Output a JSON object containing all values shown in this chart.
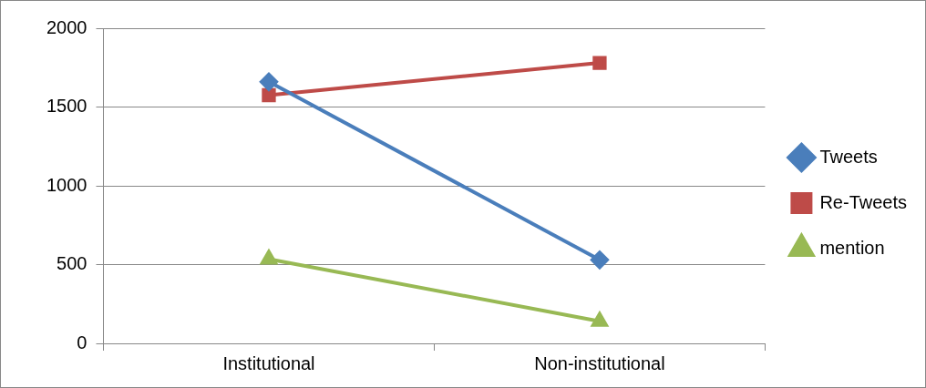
{
  "chart_data": {
    "type": "line",
    "categories": [
      "Institutional",
      "Non-institutional"
    ],
    "series": [
      {
        "name": "Tweets",
        "color": "#4a7ebb",
        "values": [
          1660,
          530
        ],
        "marker": "diamond"
      },
      {
        "name": "Re-Tweets",
        "color": "#be4b48",
        "values": [
          1575,
          1780
        ],
        "marker": "square"
      },
      {
        "name": "mention",
        "color": "#98b954",
        "values": [
          535,
          140
        ],
        "marker": "triangle"
      }
    ],
    "ylim": [
      0,
      2000
    ],
    "yticks": [
      0,
      500,
      1000,
      1500,
      2000
    ],
    "grid": "y",
    "legend": "right"
  }
}
